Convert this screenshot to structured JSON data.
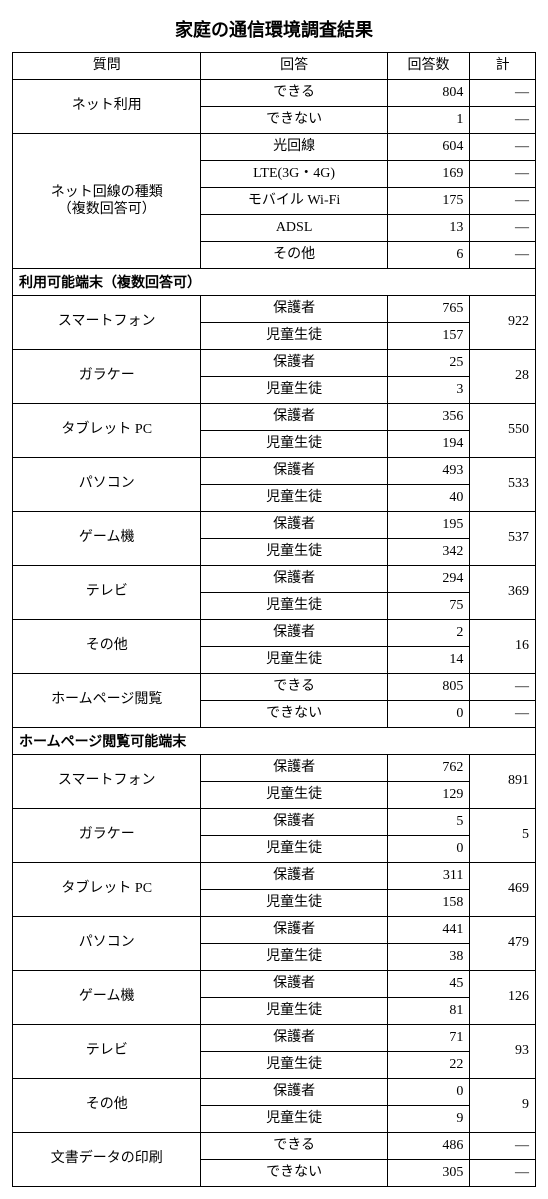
{
  "title": "家庭の通信環境調査結果",
  "header": {
    "question": "質問",
    "answer": "回答",
    "count": "回答数",
    "total": "計"
  },
  "dash": "―",
  "q_net_use": {
    "label": "ネット利用",
    "rows": [
      {
        "answer": "できる",
        "count": 804
      },
      {
        "answer": "できない",
        "count": 1
      }
    ]
  },
  "q_line_type": {
    "label_line1": "ネット回線の種類",
    "label_line2": "（複数回答可）",
    "rows": [
      {
        "answer": "光回線",
        "count": 604
      },
      {
        "answer": "LTE(3G・4G)",
        "count": 169
      },
      {
        "answer": "モバイル Wi-Fi",
        "count": 175
      },
      {
        "answer": "ADSL",
        "count": 13
      },
      {
        "answer": "その他",
        "count": 6
      }
    ]
  },
  "section_devices": "利用可能端末（複数回答可）",
  "devices": [
    {
      "label": "スマートフォン",
      "a1": "保護者",
      "c1": 765,
      "a2": "児童生徒",
      "c2": 157,
      "total": 922
    },
    {
      "label": "ガラケー",
      "a1": "保護者",
      "c1": 25,
      "a2": "児童生徒",
      "c2": 3,
      "total": 28
    },
    {
      "label": "タブレット PC",
      "a1": "保護者",
      "c1": 356,
      "a2": "児童生徒",
      "c2": 194,
      "total": 550
    },
    {
      "label": "パソコン",
      "a1": "保護者",
      "c1": 493,
      "a2": "児童生徒",
      "c2": 40,
      "total": 533
    },
    {
      "label": "ゲーム機",
      "a1": "保護者",
      "c1": 195,
      "a2": "児童生徒",
      "c2": 342,
      "total": 537
    },
    {
      "label": "テレビ",
      "a1": "保護者",
      "c1": 294,
      "a2": "児童生徒",
      "c2": 75,
      "total": 369
    },
    {
      "label": "その他",
      "a1": "保護者",
      "c1": 2,
      "a2": "児童生徒",
      "c2": 14,
      "total": 16
    }
  ],
  "q_hp_view": {
    "label": "ホームページ閲覧",
    "rows": [
      {
        "answer": "できる",
        "count": 805
      },
      {
        "answer": "できない",
        "count": 0
      }
    ]
  },
  "section_hp_devices": "ホームページ閲覧可能端末",
  "hp_devices": [
    {
      "label": "スマートフォン",
      "a1": "保護者",
      "c1": 762,
      "a2": "児童生徒",
      "c2": 129,
      "total": 891
    },
    {
      "label": "ガラケー",
      "a1": "保護者",
      "c1": 5,
      "a2": "児童生徒",
      "c2": 0,
      "total": 5
    },
    {
      "label": "タブレット PC",
      "a1": "保護者",
      "c1": 311,
      "a2": "児童生徒",
      "c2": 158,
      "total": 469
    },
    {
      "label": "パソコン",
      "a1": "保護者",
      "c1": 441,
      "a2": "児童生徒",
      "c2": 38,
      "total": 479
    },
    {
      "label": "ゲーム機",
      "a1": "保護者",
      "c1": 45,
      "a2": "児童生徒",
      "c2": 81,
      "total": 126
    },
    {
      "label": "テレビ",
      "a1": "保護者",
      "c1": 71,
      "a2": "児童生徒",
      "c2": 22,
      "total": 93
    },
    {
      "label": "その他",
      "a1": "保護者",
      "c1": 0,
      "a2": "児童生徒",
      "c2": 9,
      "total": 9
    }
  ],
  "q_print": {
    "label": "文書データの印刷",
    "rows": [
      {
        "answer": "できる",
        "count": 486
      },
      {
        "answer": "できない",
        "count": 305
      }
    ]
  }
}
